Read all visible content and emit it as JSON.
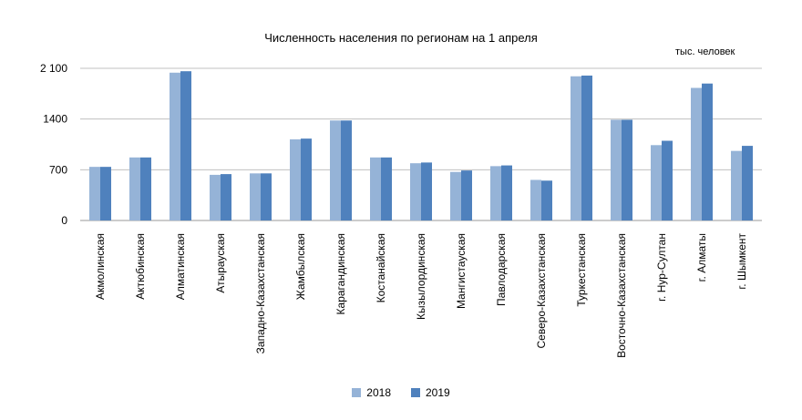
{
  "chart_data": {
    "type": "bar",
    "title": "Численность населения по регионам на 1 апреля",
    "unit_label": "тыс. человек",
    "ylim": [
      0,
      2100
    ],
    "yticks": [
      0,
      700,
      1400,
      2100
    ],
    "ytick_labels": [
      "0",
      "700",
      "1400",
      "2 100"
    ],
    "grid": true,
    "legend_position": "bottom",
    "categories": [
      "Акмолинская",
      "Актюбинская",
      "Алматинская",
      "Атырауская",
      "Западно-Казахстанская",
      "Жамбылская",
      "Карагандинская",
      "Костанайская",
      "Кызылординская",
      "Мангистауская",
      "Павлодарская",
      "Северо-Казахстанская",
      "Туркестанская",
      "Восточно-Казахстанская",
      "г. Нур-Султан",
      "г. Алматы",
      "г. Шымкент"
    ],
    "series": [
      {
        "name": "2018",
        "color": "#95b3d7",
        "values": [
          740,
          870,
          2040,
          630,
          650,
          1120,
          1380,
          870,
          790,
          670,
          750,
          560,
          1990,
          1390,
          1040,
          1830,
          960
        ]
      },
      {
        "name": "2019",
        "color": "#4f81bd",
        "values": [
          740,
          870,
          2060,
          640,
          650,
          1130,
          1380,
          870,
          800,
          690,
          760,
          550,
          2000,
          1390,
          1100,
          1890,
          1030
        ]
      }
    ]
  }
}
